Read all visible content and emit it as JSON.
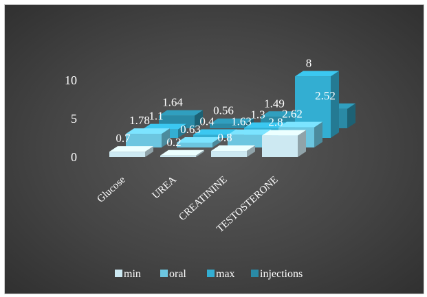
{
  "chart_data": {
    "type": "bar",
    "subtype": "3d-column",
    "title": "",
    "categories": [
      "Glucose",
      "UREA",
      "CREATININE",
      "TESTOSTERONE"
    ],
    "series": [
      {
        "name": "min",
        "values": [
          0.7,
          0.2,
          0.8,
          2.8
        ],
        "color": "#cde9f2"
      },
      {
        "name": "oral",
        "values": [
          1.78,
          0.63,
          1.63,
          2.62
        ],
        "color": "#6cc6e0"
      },
      {
        "name": "max",
        "values": [
          1.1,
          0.4,
          1.3,
          8
        ],
        "color": "#33aed2"
      },
      {
        "name": "injections",
        "values": [
          1.64,
          0.56,
          1.49,
          2.52
        ],
        "color": "#2a8aa6"
      }
    ],
    "y_ticks": [
      "0",
      "5",
      "10"
    ],
    "ylim": [
      0,
      10
    ],
    "legend_position": "bottom",
    "grid": false,
    "background": "dark-gradient"
  }
}
